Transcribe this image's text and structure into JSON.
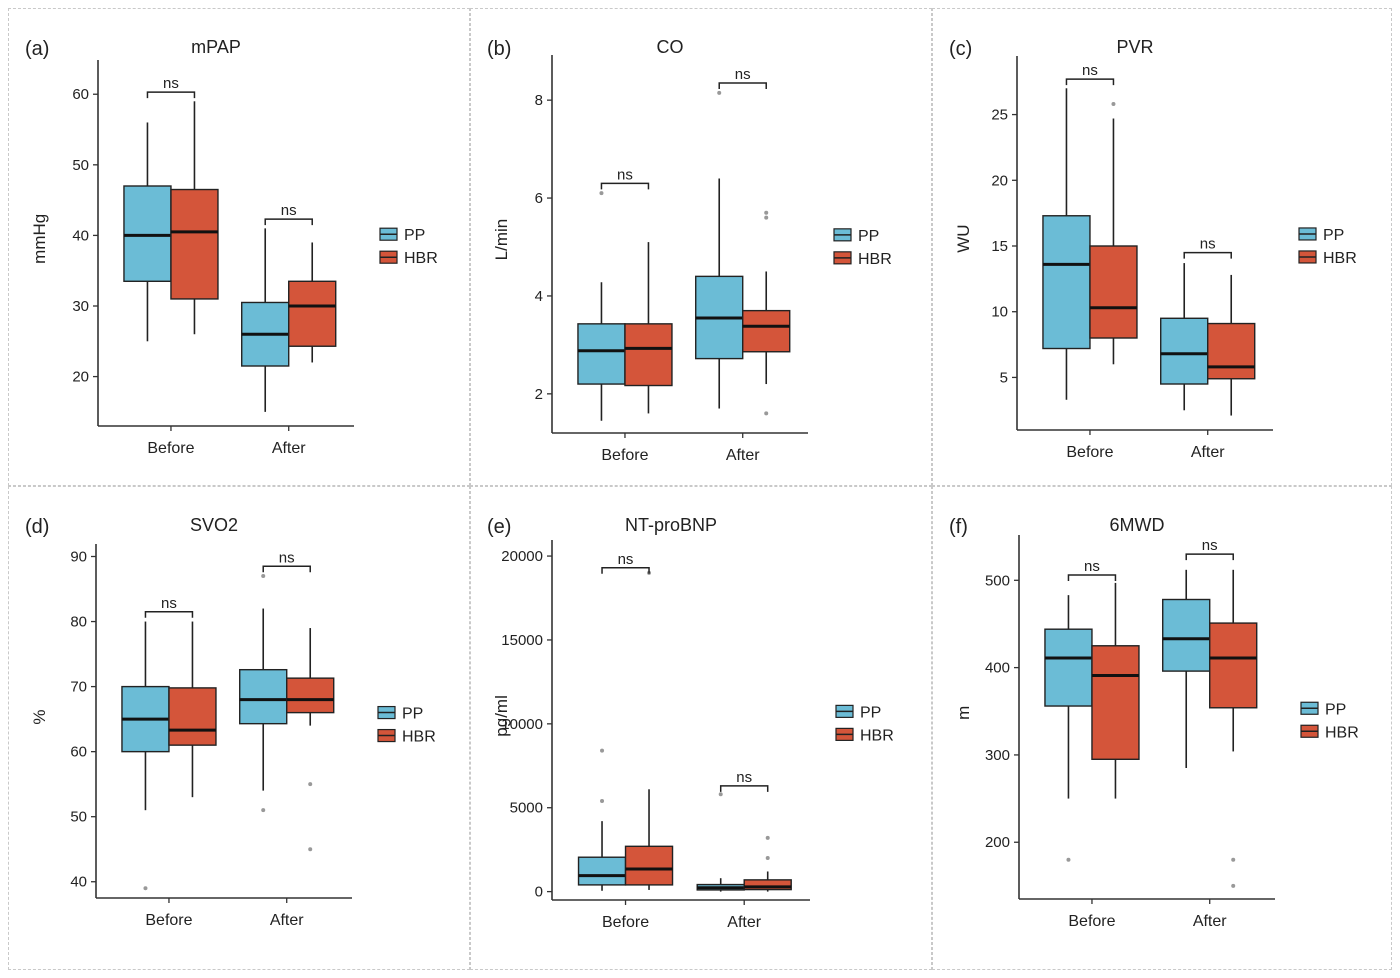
{
  "chart_data": [
    {
      "type": "box",
      "panel_label": "(a)",
      "title": "mPAP",
      "ylabel": "mmHg",
      "categories": [
        "Before",
        "After"
      ],
      "ylim": [
        13,
        64
      ],
      "yticks": [
        20,
        30,
        40,
        50,
        60
      ],
      "legend": [
        "PP",
        "HBR"
      ],
      "legend_position": "right",
      "series": [
        {
          "name": "PP",
          "boxes": [
            {
              "min": 25,
              "q1": 33.5,
              "median": 40,
              "q3": 47,
              "max": 56,
              "outliers": []
            },
            {
              "min": 15,
              "q1": 21.5,
              "median": 26,
              "q3": 30.5,
              "max": 41,
              "outliers": []
            }
          ]
        },
        {
          "name": "HBR",
          "boxes": [
            {
              "min": 26,
              "q1": 31,
              "median": 40.5,
              "q3": 46.5,
              "max": 59,
              "outliers": []
            },
            {
              "min": 22,
              "q1": 24.3,
              "median": 30,
              "q3": 33.5,
              "max": 39,
              "outliers": []
            }
          ]
        }
      ],
      "annotations": [
        {
          "category": "Before",
          "text": "ns",
          "y": 60.3
        },
        {
          "category": "After",
          "text": "ns",
          "y": 42.3
        }
      ]
    },
    {
      "type": "box",
      "panel_label": "(b)",
      "title": "CO",
      "ylabel": "L/min",
      "categories": [
        "Before",
        "After"
      ],
      "ylim": [
        1.2,
        8.8
      ],
      "yticks": [
        2,
        4,
        6,
        8
      ],
      "legend": [
        "PP",
        "HBR"
      ],
      "legend_position": "right",
      "series": [
        {
          "name": "PP",
          "boxes": [
            {
              "min": 1.45,
              "q1": 2.2,
              "median": 2.88,
              "q3": 3.43,
              "max": 4.28,
              "outliers": [
                6.1
              ]
            },
            {
              "min": 1.7,
              "q1": 2.72,
              "median": 3.55,
              "q3": 4.4,
              "max": 6.4,
              "outliers": [
                8.15
              ]
            }
          ]
        },
        {
          "name": "HBR",
          "boxes": [
            {
              "min": 1.6,
              "q1": 2.17,
              "median": 2.93,
              "q3": 3.43,
              "max": 5.1,
              "outliers": []
            },
            {
              "min": 2.2,
              "q1": 2.86,
              "median": 3.38,
              "q3": 3.7,
              "max": 4.5,
              "outliers": [
                5.6,
                5.7,
                1.6
              ]
            }
          ]
        }
      ],
      "annotations": [
        {
          "category": "Before",
          "text": "ns",
          "y": 6.3
        },
        {
          "category": "After",
          "text": "ns",
          "y": 8.35
        }
      ]
    },
    {
      "type": "box",
      "panel_label": "(c)",
      "title": "PVR",
      "ylabel": "WU",
      "categories": [
        "Before",
        "After"
      ],
      "ylim": [
        1,
        29
      ],
      "yticks": [
        5,
        10,
        15,
        20,
        25
      ],
      "legend": [
        "PP",
        "HBR"
      ],
      "legend_position": "right",
      "series": [
        {
          "name": "PP",
          "boxes": [
            {
              "min": 3.3,
              "q1": 7.2,
              "median": 13.6,
              "q3": 17.3,
              "max": 27,
              "outliers": []
            },
            {
              "min": 2.5,
              "q1": 4.5,
              "median": 6.8,
              "q3": 9.5,
              "max": 13.7,
              "outliers": []
            }
          ]
        },
        {
          "name": "HBR",
          "boxes": [
            {
              "min": 6,
              "q1": 8,
              "median": 10.3,
              "q3": 15,
              "max": 24.7,
              "outliers": [
                25.8
              ]
            },
            {
              "min": 2.1,
              "q1": 4.9,
              "median": 5.8,
              "q3": 9.1,
              "max": 12.8,
              "outliers": []
            }
          ]
        }
      ],
      "annotations": [
        {
          "category": "Before",
          "text": "ns",
          "y": 27.7
        },
        {
          "category": "After",
          "text": "ns",
          "y": 14.5
        }
      ]
    },
    {
      "type": "box",
      "panel_label": "(d)",
      "title": "SVO2",
      "ylabel": "%",
      "categories": [
        "Before",
        "After"
      ],
      "ylim": [
        37.5,
        91
      ],
      "yticks": [
        40,
        50,
        60,
        70,
        80,
        90
      ],
      "legend": [
        "PP",
        "HBR"
      ],
      "legend_position": "right",
      "series": [
        {
          "name": "PP",
          "boxes": [
            {
              "min": 51,
              "q1": 60,
              "median": 65,
              "q3": 70,
              "max": 80,
              "outliers": [
                39
              ]
            },
            {
              "min": 54,
              "q1": 64.3,
              "median": 68,
              "q3": 72.6,
              "max": 82,
              "outliers": [
                51,
                87
              ]
            }
          ]
        },
        {
          "name": "HBR",
          "boxes": [
            {
              "min": 53,
              "q1": 61,
              "median": 63.3,
              "q3": 69.8,
              "max": 80,
              "outliers": []
            },
            {
              "min": 64,
              "q1": 66,
              "median": 68,
              "q3": 71.3,
              "max": 79,
              "outliers": [
                55,
                45
              ]
            }
          ]
        }
      ],
      "annotations": [
        {
          "category": "Before",
          "text": "ns",
          "y": 81.5
        },
        {
          "category": "After",
          "text": "ns",
          "y": 88.5
        }
      ]
    },
    {
      "type": "box",
      "panel_label": "(e)",
      "title": "NT-proBNP",
      "ylabel": "pg/ml",
      "categories": [
        "Before",
        "After"
      ],
      "ylim": [
        -500,
        20600
      ],
      "yticks": [
        0,
        5000,
        10000,
        15000,
        20000
      ],
      "legend": [
        "PP",
        "HBR"
      ],
      "legend_position": "right",
      "series": [
        {
          "name": "PP",
          "boxes": [
            {
              "min": 50,
              "q1": 400,
              "median": 950,
              "q3": 2050,
              "max": 4200,
              "outliers": [
                5400,
                8400
              ]
            },
            {
              "min": 0,
              "q1": 100,
              "median": 230,
              "q3": 420,
              "max": 800,
              "outliers": [
                5800
              ]
            }
          ]
        },
        {
          "name": "HBR",
          "boxes": [
            {
              "min": 100,
              "q1": 400,
              "median": 1350,
              "q3": 2700,
              "max": 6100,
              "outliers": [
                19000
              ]
            },
            {
              "min": 0,
              "q1": 120,
              "median": 280,
              "q3": 700,
              "max": 1200,
              "outliers": [
                2000,
                3200
              ]
            }
          ]
        }
      ],
      "annotations": [
        {
          "category": "Before",
          "text": "ns",
          "y": 19300
        },
        {
          "category": "After",
          "text": "ns",
          "y": 6300
        }
      ]
    },
    {
      "type": "box",
      "panel_label": "(f)",
      "title": "6MWD",
      "ylabel": "m",
      "categories": [
        "Before",
        "After"
      ],
      "ylim": [
        135,
        545
      ],
      "yticks": [
        200,
        300,
        400,
        500
      ],
      "legend": [
        "PP",
        "HBR"
      ],
      "legend_position": "right",
      "series": [
        {
          "name": "PP",
          "boxes": [
            {
              "min": 250,
              "q1": 356,
              "median": 411,
              "q3": 444,
              "max": 483,
              "outliers": [
                180
              ]
            },
            {
              "min": 285,
              "q1": 396,
              "median": 433,
              "q3": 478,
              "max": 512,
              "outliers": []
            }
          ]
        },
        {
          "name": "HBR",
          "boxes": [
            {
              "min": 250,
              "q1": 295,
              "median": 391,
              "q3": 425,
              "max": 497,
              "outliers": []
            },
            {
              "min": 304,
              "q1": 354,
              "median": 411,
              "q3": 451,
              "max": 512,
              "outliers": [
                180,
                150
              ]
            }
          ]
        }
      ],
      "annotations": [
        {
          "category": "Before",
          "text": "ns",
          "y": 506
        },
        {
          "category": "After",
          "text": "ns",
          "y": 530
        }
      ]
    }
  ],
  "colors": {
    "PP": "#6bbcd6",
    "HBR": "#d4553a"
  }
}
